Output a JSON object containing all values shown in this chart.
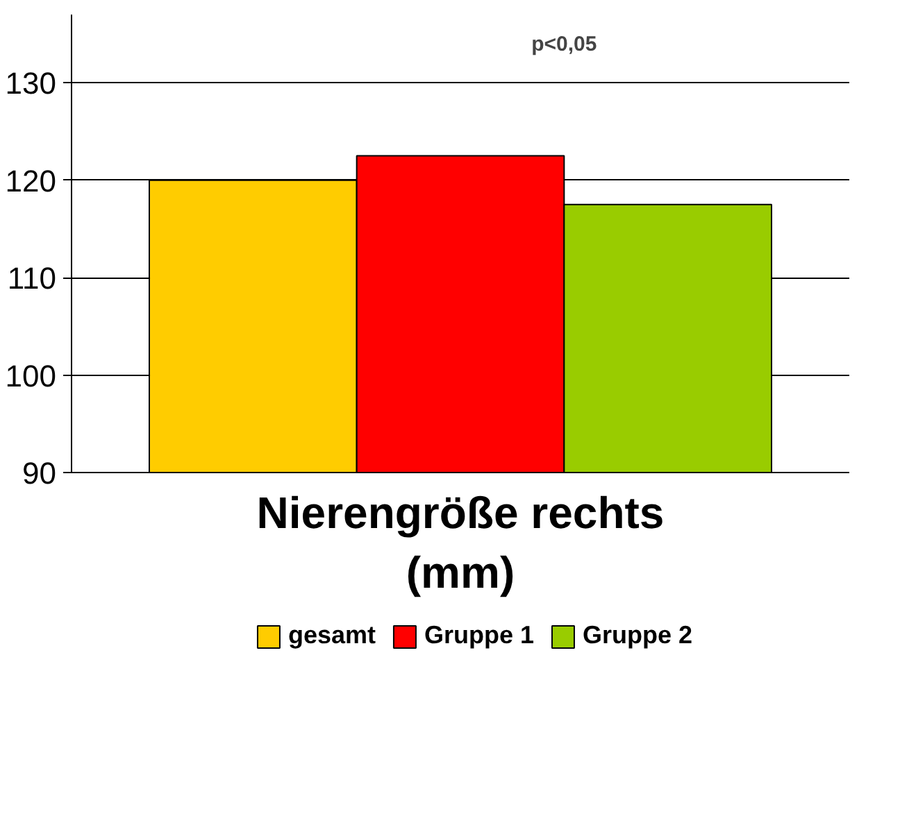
{
  "chart_data": {
    "type": "bar",
    "xlabel": "Nierengröße rechts\n(mm)",
    "categories": [
      null
    ],
    "series": [
      {
        "name": "gesamt",
        "color": "#ffcc00",
        "values": [
          120
        ]
      },
      {
        "name": "Gruppe 1",
        "color": "#ff0000",
        "values": [
          122.5
        ]
      },
      {
        "name": "Gruppe 2",
        "color": "#99cc00",
        "values": [
          117.5
        ]
      }
    ],
    "ylim": [
      90,
      137
    ],
    "yticks": [
      90,
      100,
      110,
      120,
      130
    ],
    "grid": "y",
    "legend": "bottom",
    "annotations": [
      "p<0,05"
    ]
  }
}
